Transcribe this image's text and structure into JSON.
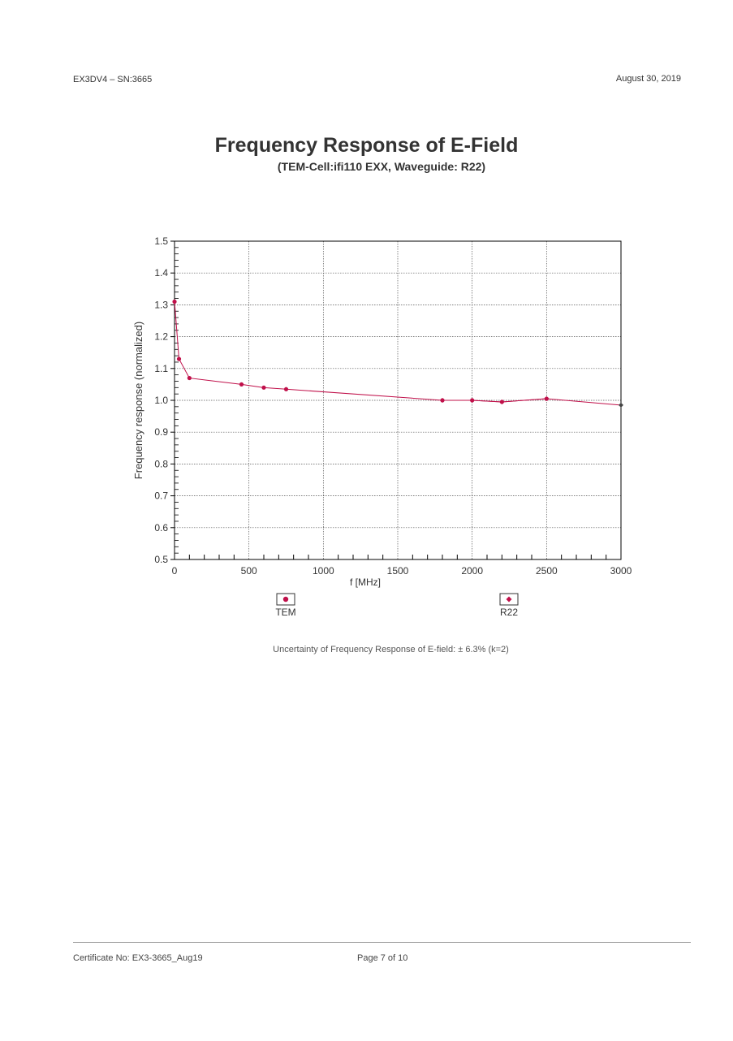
{
  "header": {
    "left": "EX3DV4 – SN:3665",
    "right": "August 30, 2019"
  },
  "footer": {
    "certificate": "Certificate No: EX3-3665_Aug19",
    "page": "Page 7 of 10"
  },
  "uncertainty_note": "Uncertainty of Frequency Response of E-field: ± 6.3% (k=2)",
  "colors": {
    "tem": "#c0104a",
    "r22": "#c0104a",
    "axis": "#000000",
    "grid": "#555555"
  },
  "chart_data": {
    "type": "line",
    "title": "Frequency Response of E-Field",
    "subtitle": "(TEM-Cell:ifi110 EXX, Waveguide: R22)",
    "xlabel": "f [MHz]",
    "ylabel": "Frequency response (normalized)",
    "xlim": [
      0,
      3000
    ],
    "ylim": [
      0.5,
      1.5
    ],
    "xticks": [
      0,
      500,
      1000,
      1500,
      2000,
      2500,
      3000
    ],
    "yticks": [
      0.5,
      0.6,
      0.7,
      0.8,
      0.9,
      1.0,
      1.1,
      1.2,
      1.3,
      1.4,
      1.5
    ],
    "ytick_labels": [
      "0.5",
      "0.6",
      "0.7",
      "0.8",
      "0.9",
      "1.0",
      "1.1",
      "1.2",
      "1.3",
      "1.4",
      "1.5"
    ],
    "grid": true,
    "legend_placement": "bottom",
    "series": [
      {
        "name": "TEM",
        "marker": "circle",
        "x": [
          0.1,
          30,
          100,
          450,
          600,
          750,
          1800,
          2000,
          2200,
          2500
        ],
        "y": [
          1.31,
          1.13,
          1.07,
          1.05,
          1.04,
          1.035,
          1.0,
          1.0,
          0.995,
          1.005
        ]
      },
      {
        "name": "R22",
        "marker": "diamond",
        "x": [
          1800,
          2000,
          2200,
          2500,
          3000
        ],
        "y": [
          1.0,
          1.0,
          0.995,
          1.005,
          0.985
        ]
      }
    ]
  }
}
